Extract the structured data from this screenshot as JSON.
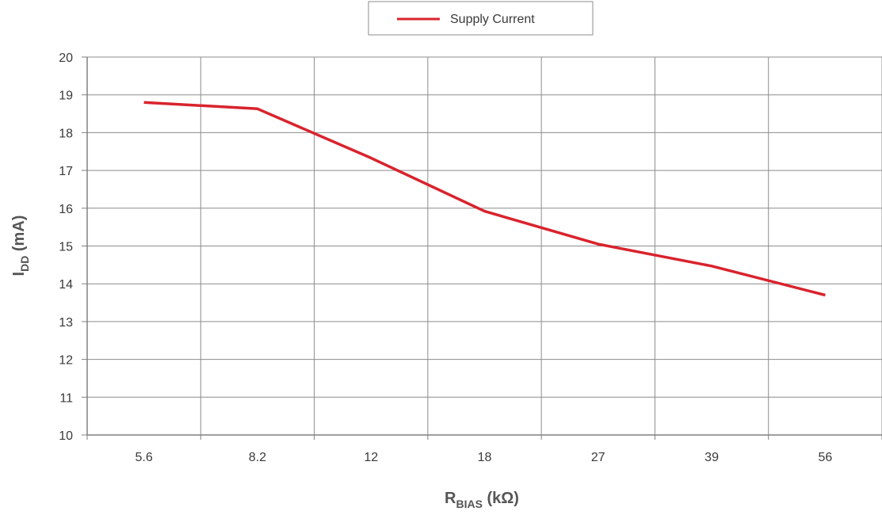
{
  "chart_data": {
    "type": "line",
    "categories": [
      "5.6",
      "8.2",
      "12",
      "18",
      "27",
      "39",
      "56"
    ],
    "series": [
      {
        "name": "Supply Current",
        "color": "#d9232d",
        "values": [
          18.8,
          18.63,
          17.33,
          15.92,
          15.05,
          14.47,
          13.7
        ]
      }
    ],
    "ylim": [
      10,
      20
    ],
    "yticks": [
      "10",
      "11",
      "12",
      "13",
      "14",
      "15",
      "16",
      "17",
      "18",
      "19",
      "20"
    ],
    "xlabel": {
      "main": "R",
      "sub": "BIAS",
      "unit": " (kΩ)"
    },
    "ylabel": {
      "main": "I",
      "sub": "DD",
      "unit": " (mA)"
    },
    "legend": {
      "position": "top-center",
      "entries": [
        "Supply Current"
      ]
    },
    "grid": true,
    "colors": {
      "line": "#d9232d",
      "grid": "#8c8c8c",
      "axis": "#808080",
      "text": "#3a3a3a"
    }
  }
}
